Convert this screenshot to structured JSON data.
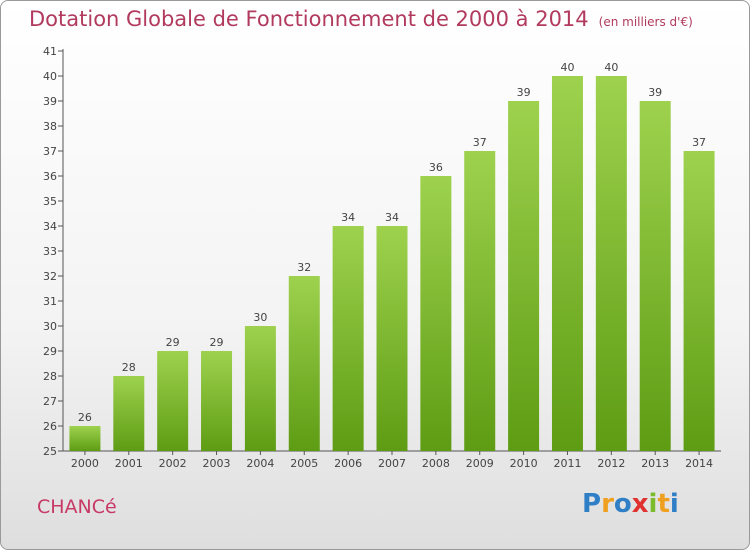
{
  "chart_data": {
    "type": "bar",
    "title": "Dotation Globale de Fonctionnement de 2000 à 2014",
    "subtitle": "(en milliers d'€)",
    "categories": [
      "2000",
      "2001",
      "2002",
      "2003",
      "2004",
      "2005",
      "2006",
      "2007",
      "2008",
      "2009",
      "2010",
      "2011",
      "2012",
      "2013",
      "2014"
    ],
    "values": [
      26,
      28,
      29,
      29,
      30,
      32,
      34,
      34,
      36,
      37,
      39,
      40,
      40,
      39,
      37
    ],
    "ylim": [
      25,
      41
    ],
    "yticks": [
      25,
      26,
      27,
      28,
      29,
      30,
      31,
      32,
      33,
      34,
      35,
      36,
      37,
      38,
      39,
      40,
      41
    ],
    "grid": false,
    "bar_color": "#7cbb2e"
  },
  "footer": {
    "town": "CHANCé",
    "logo": [
      "P",
      "r",
      "o",
      "x",
      "i",
      "t",
      "i"
    ],
    "logo_colors": [
      "#2f7fc7",
      "#f0a020",
      "#2f7fc7",
      "#e03030",
      "#7cbb2e",
      "#f0a020",
      "#2f7fc7"
    ]
  }
}
